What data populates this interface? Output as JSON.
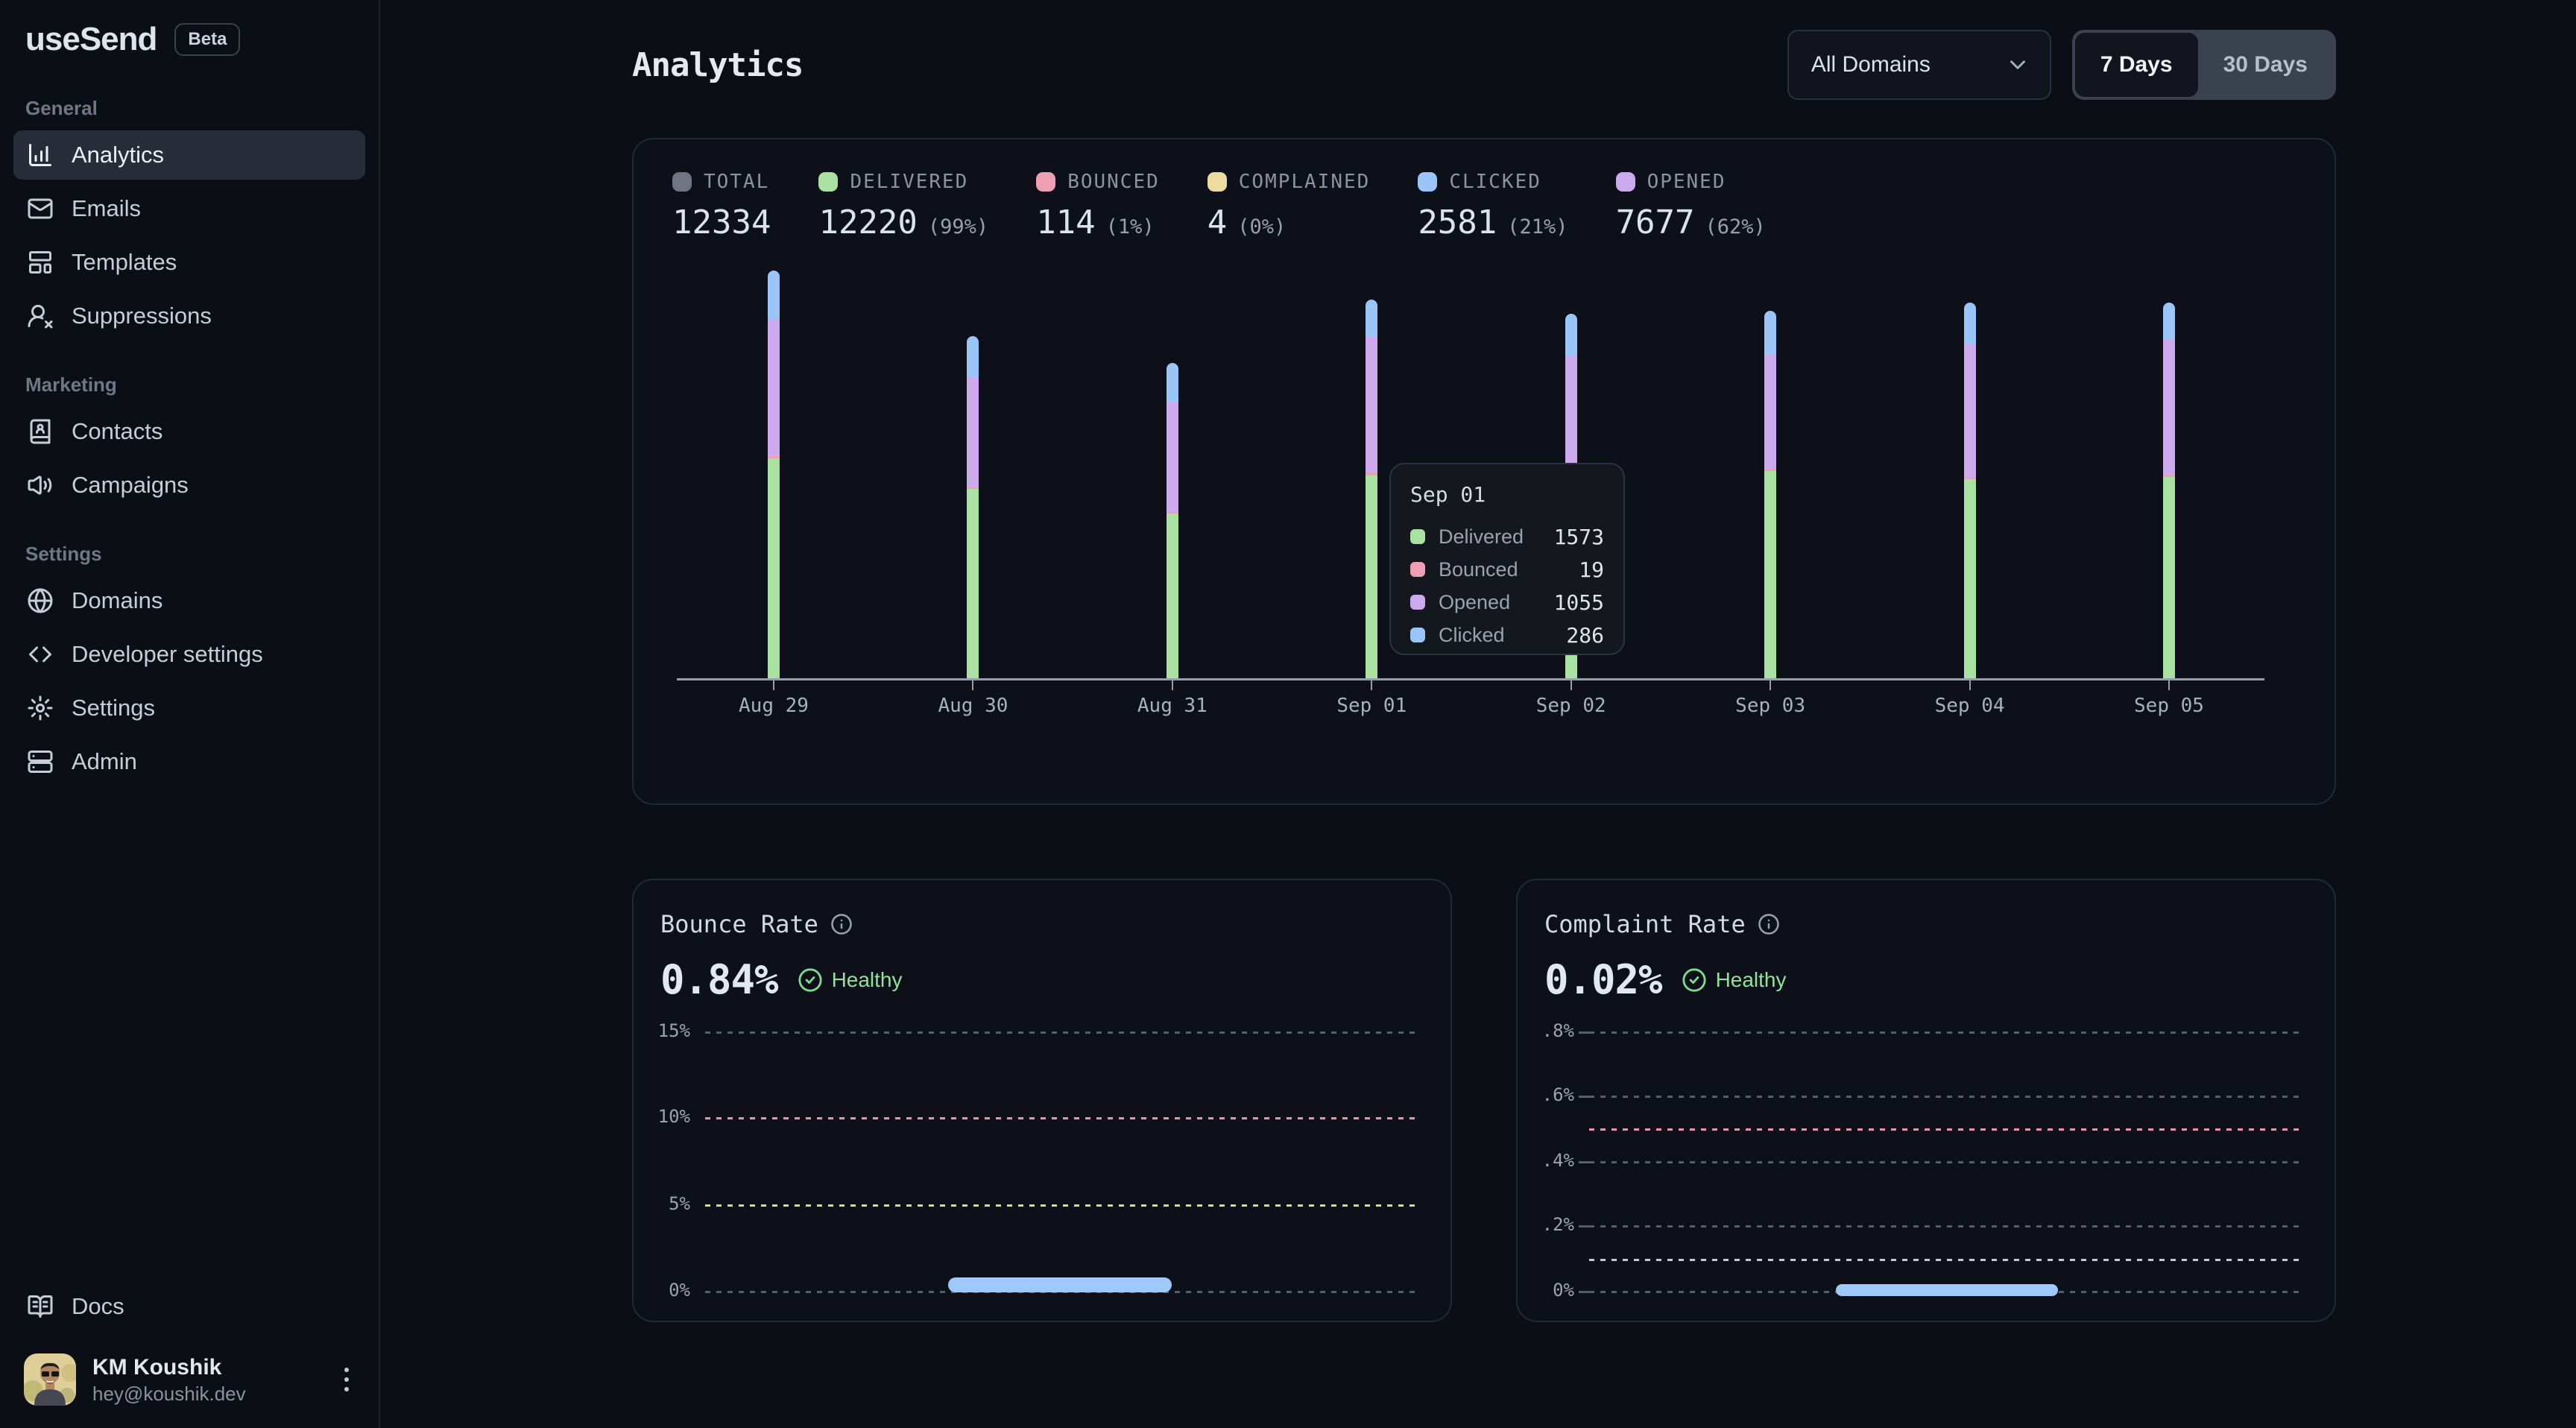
{
  "brand": {
    "name": "useSend",
    "badge": "Beta"
  },
  "sidebar": {
    "sections": [
      {
        "label": "General",
        "items": [
          {
            "label": "Analytics",
            "icon": "chart-column",
            "active": true
          },
          {
            "label": "Emails",
            "icon": "mail",
            "active": false
          },
          {
            "label": "Templates",
            "icon": "layout-template",
            "active": false
          },
          {
            "label": "Suppressions",
            "icon": "user-x",
            "active": false
          }
        ]
      },
      {
        "label": "Marketing",
        "items": [
          {
            "label": "Contacts",
            "icon": "book-user",
            "active": false
          },
          {
            "label": "Campaigns",
            "icon": "megaphone",
            "active": false
          }
        ]
      },
      {
        "label": "Settings",
        "items": [
          {
            "label": "Domains",
            "icon": "globe",
            "active": false
          },
          {
            "label": "Developer settings",
            "icon": "code",
            "active": false
          },
          {
            "label": "Settings",
            "icon": "gear",
            "active": false
          },
          {
            "label": "Admin",
            "icon": "server",
            "active": false
          }
        ]
      }
    ],
    "footer_item": {
      "label": "Docs",
      "icon": "book-open"
    },
    "user": {
      "name": "KM Koushik",
      "email": "hey@koushik.dev"
    }
  },
  "header": {
    "title": "Analytics",
    "domain_select": {
      "value": "All Domains"
    },
    "range_toggle": {
      "options": [
        "7 Days",
        "30 Days"
      ],
      "selected": "7 Days"
    }
  },
  "stats": [
    {
      "label": "TOTAL",
      "value": "12334",
      "pct": "",
      "color": "#6f7582"
    },
    {
      "label": "DELIVERED",
      "value": "12220",
      "pct": "(99%)",
      "color": "#a9e2a0"
    },
    {
      "label": "BOUNCED",
      "value": "114",
      "pct": "(1%)",
      "color": "#ee9fb3"
    },
    {
      "label": "COMPLAINED",
      "value": "4",
      "pct": "(0%)",
      "color": "#ecdc9d"
    },
    {
      "label": "CLICKED",
      "value": "2581",
      "pct": "(21%)",
      "color": "#9ac5f8"
    },
    {
      "label": "OPENED",
      "value": "7677",
      "pct": "(62%)",
      "color": "#cda9ee"
    }
  ],
  "tooltip": {
    "title": "Sep 01",
    "rows": [
      {
        "label": "Delivered",
        "value": "1573",
        "color": "#a9e2a0"
      },
      {
        "label": "Bounced",
        "value": "19",
        "color": "#ee9fb3"
      },
      {
        "label": "Opened",
        "value": "1055",
        "color": "#cda9ee"
      },
      {
        "label": "Clicked",
        "value": "286",
        "color": "#9ac5f8"
      }
    ]
  },
  "chart_data": [
    {
      "id": "email-volume",
      "type": "bar",
      "stacked": true,
      "legend_position": "top-stats",
      "categories": [
        "Aug 29",
        "Aug 30",
        "Aug 31",
        "Sep 01",
        "Sep 02",
        "Sep 03",
        "Sep 04",
        "Sep 05"
      ],
      "series": [
        {
          "name": "Delivered",
          "color": "#a9e2a0",
          "values": [
            1706,
            1464,
            1277,
            1573,
            1550,
            1604,
            1540,
            1559
          ]
        },
        {
          "name": "Bounced",
          "color": "#ee9fb3",
          "values": [
            15,
            14,
            12,
            19,
            14,
            13,
            14,
            13
          ]
        },
        {
          "name": "Opened",
          "color": "#cda9ee",
          "values": [
            1057,
            853,
            849,
            1055,
            929,
            895,
            1035,
            1050
          ]
        },
        {
          "name": "Clicked",
          "color": "#9ac5f8",
          "values": [
            382,
            318,
            306,
            286,
            331,
            334,
            322,
            288
          ]
        }
      ],
      "ylim": [
        0,
        3200
      ],
      "grid": false,
      "hover_tooltip": {
        "category": "Sep 01",
        "values": {
          "Delivered": 1573,
          "Bounced": 19,
          "Opened": 1055,
          "Clicked": 286
        }
      }
    },
    {
      "id": "bounce-rate",
      "type": "line",
      "title": "Bounce Rate",
      "value": "0.84%",
      "status": "Healthy",
      "yticks": [
        "15%",
        "10%",
        "5%",
        "0%"
      ],
      "ylim": [
        0,
        15
      ],
      "grid": "dashed",
      "thresholds": [
        {
          "value": "10%",
          "color": "#e795ad"
        },
        {
          "value": "5%",
          "color": "#d6d7a6"
        }
      ],
      "series": [
        {
          "name": "Bounce Rate",
          "color": "#9ec9f8",
          "approx_level": 0.84,
          "visible_span": [
            "Aug 31",
            "Sep 02"
          ]
        }
      ]
    },
    {
      "id": "complaint-rate",
      "type": "line",
      "title": "Complaint Rate",
      "value": "0.02%",
      "status": "Healthy",
      "yticks": [
        ".8%",
        ".6%",
        ".4%",
        ".2%",
        "0%"
      ],
      "ylim": [
        0,
        0.8
      ],
      "grid": "dashed",
      "thresholds": [
        {
          "value": "0.5%",
          "color": "#e795ad"
        },
        {
          "value": "0.1%",
          "color": "#c3c8d2"
        }
      ],
      "series": [
        {
          "name": "Complaint Rate",
          "color": "#9ec9f8",
          "approx_level": 0.02,
          "visible_span": [
            "Aug 31",
            "Sep 02"
          ]
        }
      ]
    }
  ]
}
